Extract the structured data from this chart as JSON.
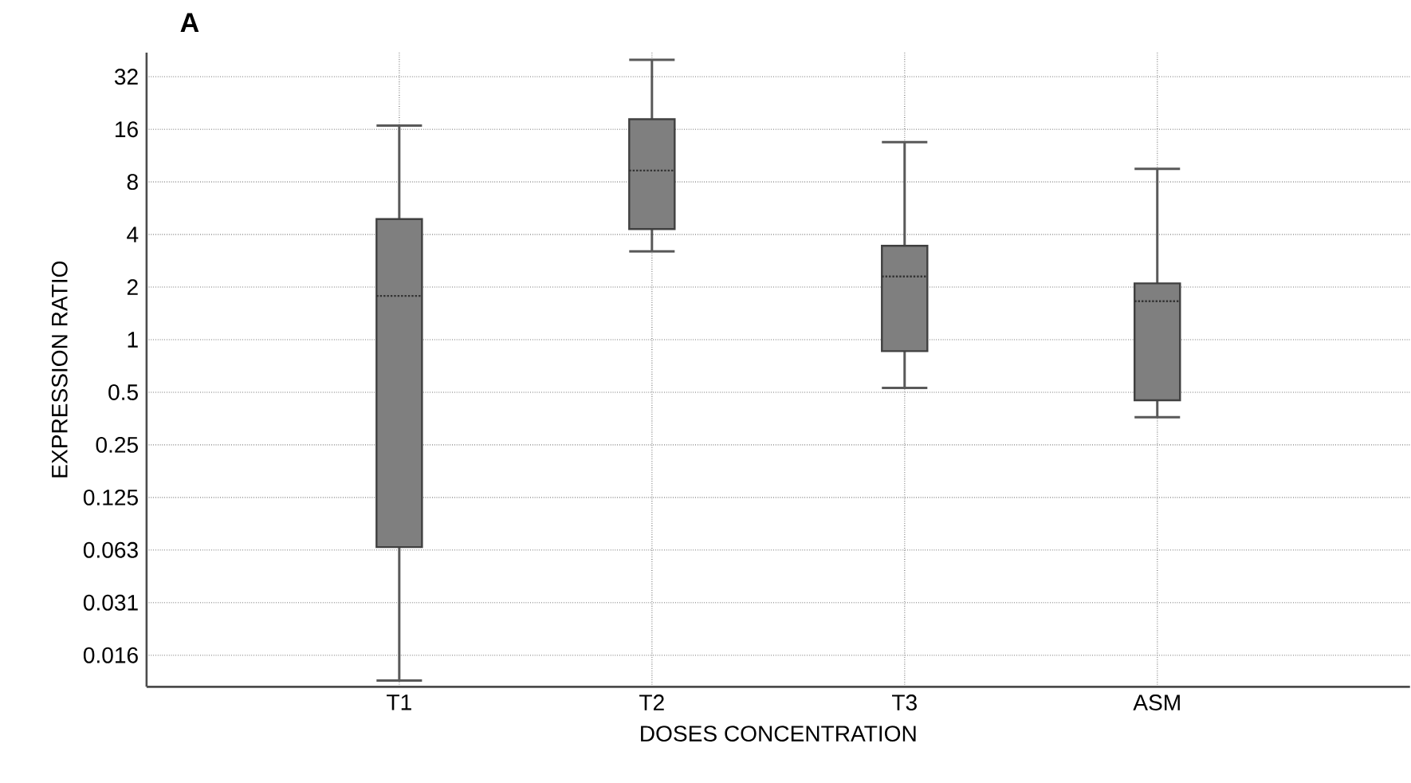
{
  "chart_data": {
    "type": "box",
    "title": "A",
    "xlabel": "DOSES CONCENTRATION",
    "ylabel": "EXPRESSION RATIO",
    "categories": [
      "T1",
      "T2",
      "T3",
      "ASM"
    ],
    "boxes": [
      {
        "low": 0.0112,
        "q1": 0.065,
        "median": 1.78,
        "q3": 4.9,
        "high": 16.8
      },
      {
        "low": 3.2,
        "q1": 4.3,
        "median": 9.3,
        "q3": 18.3,
        "high": 40
      },
      {
        "low": 0.53,
        "q1": 0.86,
        "median": 2.3,
        "q3": 3.45,
        "high": 13.5
      },
      {
        "low": 0.36,
        "q1": 0.45,
        "median": 1.66,
        "q3": 2.1,
        "high": 9.5
      }
    ],
    "color": "#7f7f7f",
    "log": "y",
    "grid": true,
    "ylim": [
      0.0103,
      44
    ],
    "yticks": [
      {
        "value": 0.015625,
        "label": "0.016"
      },
      {
        "value": 0.03125,
        "label": "0.031"
      },
      {
        "value": 0.0625,
        "label": "0.063"
      },
      0.125,
      0.25,
      0.5,
      1,
      2,
      4,
      8,
      16,
      32
    ]
  }
}
